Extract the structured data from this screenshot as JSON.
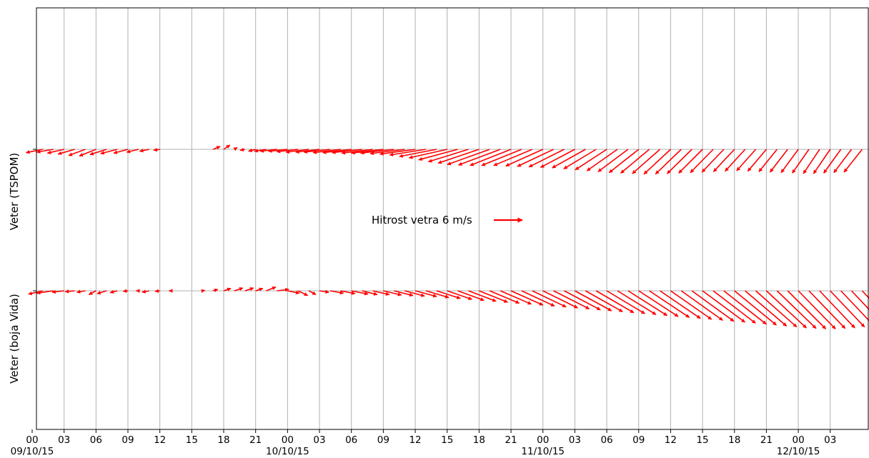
{
  "chart_data": {
    "type": "quiver",
    "title": "",
    "arrow_color": "#ff0000",
    "grid": true,
    "x_range": [
      "2015-10-09T00:00-03:00",
      "2015-10-12T00:00+03:00"
    ],
    "x_tick_labels": [
      "00",
      "03",
      "06",
      "09",
      "12",
      "15",
      "18",
      "21",
      "00",
      "03",
      "06",
      "09",
      "12",
      "15",
      "18",
      "21",
      "00",
      "03",
      "06",
      "09",
      "12",
      "15",
      "18",
      "21",
      "00",
      "03"
    ],
    "date_labels": [
      "09/10/15",
      "10/10/15",
      "11/10/15",
      "12/10/15"
    ],
    "y_tick_labels": [
      "Veter (TSPOM)",
      "Veter (boja Vida)"
    ],
    "key": {
      "label": "Hitrost vetra 6 m/s",
      "speed_ms": 6
    },
    "series": [
      {
        "name": "Veter (TSPOM)",
        "start": "2015-10-09T00:00",
        "step_hours": 1,
        "u": [
          -3.5,
          -3.5,
          -3.5,
          -3.5,
          -3.5,
          -3.5,
          -3.5,
          -3.5,
          -3.5,
          -3.0,
          -2.5,
          -2.0,
          -1.3,
          null,
          null,
          null,
          null,
          1.5,
          1.3,
          0.6,
          -1.0,
          -1.5,
          -2.5,
          -3.5,
          -4.0,
          -4.5,
          -4.8,
          -5.0,
          -5.5,
          -5.8,
          -6.0,
          -6.3,
          -6.5,
          -6.7,
          -7.0,
          -7.2,
          -7.4,
          -7.6,
          -7.8,
          -8.0,
          -8.2,
          -8.4,
          -8.6,
          -8.9,
          -8.8,
          -8.6,
          -8.4,
          -8.1,
          -7.8,
          -7.6,
          -7.4,
          -7.2,
          -7.0,
          -6.8,
          -6.6,
          -6.4,
          -6.3,
          -6.2,
          -6.0,
          -5.8,
          -5.6,
          -5.4,
          -5.2,
          -5.0,
          -4.8,
          -4.6,
          -4.4,
          -4.2,
          -4.0,
          -3.9,
          -3.8,
          -3.7,
          -3.6,
          -3.5,
          -3.4,
          -3.5,
          -3.6,
          -3.7,
          -3.8,
          -3.9,
          -4.0,
          -4.2,
          -4.4,
          -4.5,
          -4.7,
          -4.8,
          -5.0,
          -5.2,
          -5.3,
          -5.5,
          -5.6,
          -5.7,
          -5.8,
          -5.9,
          -6.0,
          -6.0,
          -5.9,
          -5.8,
          -5.7,
          -5.6,
          -5.5,
          -5.4,
          -5.3,
          -5.2,
          -5.1,
          -5.0,
          -4.9,
          -4.8,
          -4.7,
          -4.6
        ],
        "v": [
          -0.8,
          -0.7,
          -0.6,
          -0.8,
          -1.0,
          -1.3,
          -1.4,
          -1.1,
          -0.9,
          -0.8,
          -0.6,
          -0.4,
          -0.2,
          null,
          null,
          null,
          null,
          0.6,
          0.9,
          0.4,
          -0.2,
          -0.4,
          -0.4,
          -0.4,
          -0.4,
          -0.5,
          -0.6,
          -0.6,
          -0.6,
          -0.7,
          -0.7,
          -0.7,
          -0.8,
          -0.8,
          -0.8,
          -0.9,
          -1.0,
          -1.2,
          -1.5,
          -1.8,
          -2.2,
          -2.6,
          -2.9,
          -3.2,
          -3.3,
          -3.4,
          -3.4,
          -3.4,
          -3.5,
          -3.6,
          -3.7,
          -3.8,
          -3.9,
          -4.1,
          -4.3,
          -4.5,
          -4.7,
          -4.9,
          -5.0,
          -5.1,
          -5.2,
          -5.2,
          -5.1,
          -5.0,
          -4.9,
          -4.8,
          -4.7,
          -4.6,
          -4.5,
          -4.6,
          -4.7,
          -4.8,
          -4.9,
          -5.0,
          -5.1,
          -5.1,
          -5.0,
          -4.9,
          -4.8,
          -4.7,
          -4.6,
          -4.5,
          -4.3,
          -4.1,
          -3.9,
          -3.7,
          -3.5,
          -3.3,
          -3.0,
          -2.8,
          -2.5,
          -2.3,
          -2.0,
          -1.8,
          -1.5,
          -1.3,
          -1.2,
          -1.1,
          -1.0,
          -0.9,
          -0.8,
          -0.7,
          -0.6,
          -0.5,
          -0.4,
          -0.3,
          -0.2,
          -0.1,
          0.0,
          0.0
        ]
      },
      {
        "name": "Veter (boja Vida)",
        "start": "2015-10-08T21:00",
        "step_hours": 1,
        "u": [
          -2.0,
          -1.5,
          -2.5,
          -3.0,
          -3.0,
          -3.5,
          -2.5,
          -2.0,
          -1.8,
          -1.5,
          -2.0,
          -1.5,
          -1.0,
          -0.5,
          -1.5,
          -1.0,
          -0.3,
          null,
          null,
          0.5,
          1.0,
          1.5,
          1.8,
          1.8,
          1.5,
          2.0,
          2.5,
          2.5,
          2.0,
          1.5,
          2.0,
          2.8,
          3.0,
          3.5,
          3.2,
          3.5,
          3.8,
          4.0,
          4.2,
          4.5,
          4.8,
          5.0,
          5.2,
          5.5,
          5.8,
          6.0,
          6.2,
          6.5,
          6.7,
          6.9,
          7.1,
          7.3,
          7.5,
          7.6,
          7.7,
          7.8,
          7.9,
          8.0,
          8.1,
          8.2,
          8.3,
          8.4,
          8.5,
          8.6,
          8.7,
          8.8,
          8.9,
          8.9,
          8.9,
          8.8,
          8.7,
          8.6,
          8.4,
          8.2,
          8.0,
          7.8,
          7.6,
          7.4,
          7.2,
          7.0,
          6.8,
          6.6,
          6.4,
          6.2,
          6.0,
          5.8,
          5.6,
          5.4,
          5.2,
          5.0,
          4.8,
          4.6,
          4.4,
          4.2,
          4.0,
          3.8,
          3.6,
          3.4,
          3.2,
          3.0,
          2.8,
          2.7,
          2.6,
          2.5,
          2.4,
          2.3,
          2.2,
          2.1,
          2.0
        ],
        "v": [
          -0.3,
          -0.6,
          -0.8,
          -1.0,
          -0.7,
          -0.5,
          -0.3,
          -0.2,
          -0.3,
          -0.8,
          -0.6,
          -0.4,
          -0.1,
          0.0,
          -0.3,
          -0.1,
          0.0,
          null,
          null,
          0.1,
          0.3,
          0.5,
          0.6,
          0.6,
          0.5,
          0.8,
          0.3,
          -0.5,
          -1.0,
          -0.8,
          -0.3,
          -0.5,
          -0.6,
          -0.7,
          -0.8,
          -0.8,
          -0.9,
          -1.0,
          -1.1,
          -1.2,
          -1.4,
          -1.6,
          -1.8,
          -2.0,
          -2.2,
          -2.4,
          -2.6,
          -2.8,
          -3.0,
          -3.2,
          -3.4,
          -3.6,
          -3.8,
          -4.0,
          -4.2,
          -4.4,
          -4.6,
          -4.8,
          -5.0,
          -5.2,
          -5.4,
          -5.6,
          -5.8,
          -6.0,
          -6.2,
          -6.4,
          -6.6,
          -6.8,
          -7.0,
          -7.2,
          -7.4,
          -7.6,
          -7.8,
          -7.9,
          -8.0,
          -8.0,
          -7.9,
          -7.8,
          -7.6,
          -7.4,
          -7.2,
          -7.0,
          -6.8,
          -6.5,
          -6.2,
          -5.9,
          -5.6,
          -5.3,
          -5.0,
          -4.6,
          -4.2,
          -3.8,
          -3.4,
          -3.0,
          -2.6,
          -2.2,
          -1.8,
          -1.4,
          -1.0,
          -0.6,
          -0.3,
          0.0,
          0.2,
          0.3,
          0.4,
          0.4,
          0.3,
          0.2,
          0.1
        ]
      }
    ]
  }
}
